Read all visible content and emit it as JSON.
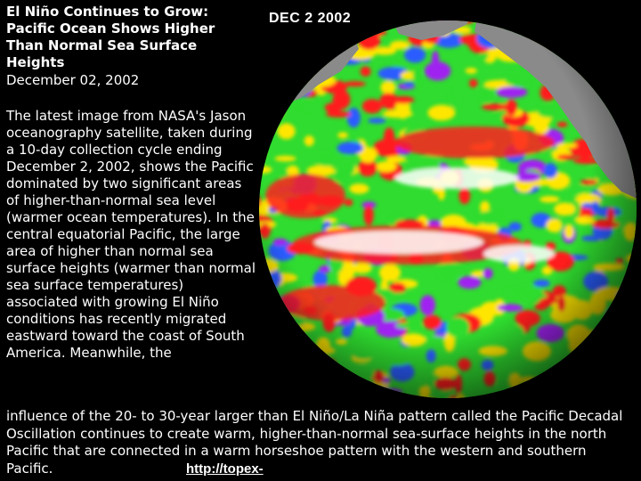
{
  "title": "El Niño Continues to Grow: Pacific Ocean Shows Higher Than Normal Sea Surface Heights",
  "date": "December 02, 2002",
  "body_left": "The latest image from NASA's Jason oceanography satellite, taken during a 10-day collection cycle ending December 2, 2002, shows the Pacific dominated by two significant areas of higher-than-normal sea level (warmer ocean temperatures). In the central equatorial Pacific, the large area of higher than normal sea surface heights (warmer than normal sea surface temperatures) associated with growing El Niño conditions has recently migrated eastward toward the coast of South America. Meanwhile, the",
  "body_bottom": "influence of the 20- to 30-year larger than El Niño/La Niña pattern called the Pacific Decadal Oscillation continues to create warm, higher-than-normal sea-surface heights in the north Pacific that are connected in a warm horseshoe pattern with the western and southern Pacific.",
  "link_text": "http://topex-",
  "globe": {
    "date_label": "DEC  2 2002",
    "colors": {
      "land": "#8a8a8a",
      "high": "#ffffff",
      "warm": "#ff1e1e",
      "mid": "#ffe600",
      "normal": "#2fdc2f",
      "low": "#2a5cff",
      "lowest": "#a020f0"
    }
  }
}
